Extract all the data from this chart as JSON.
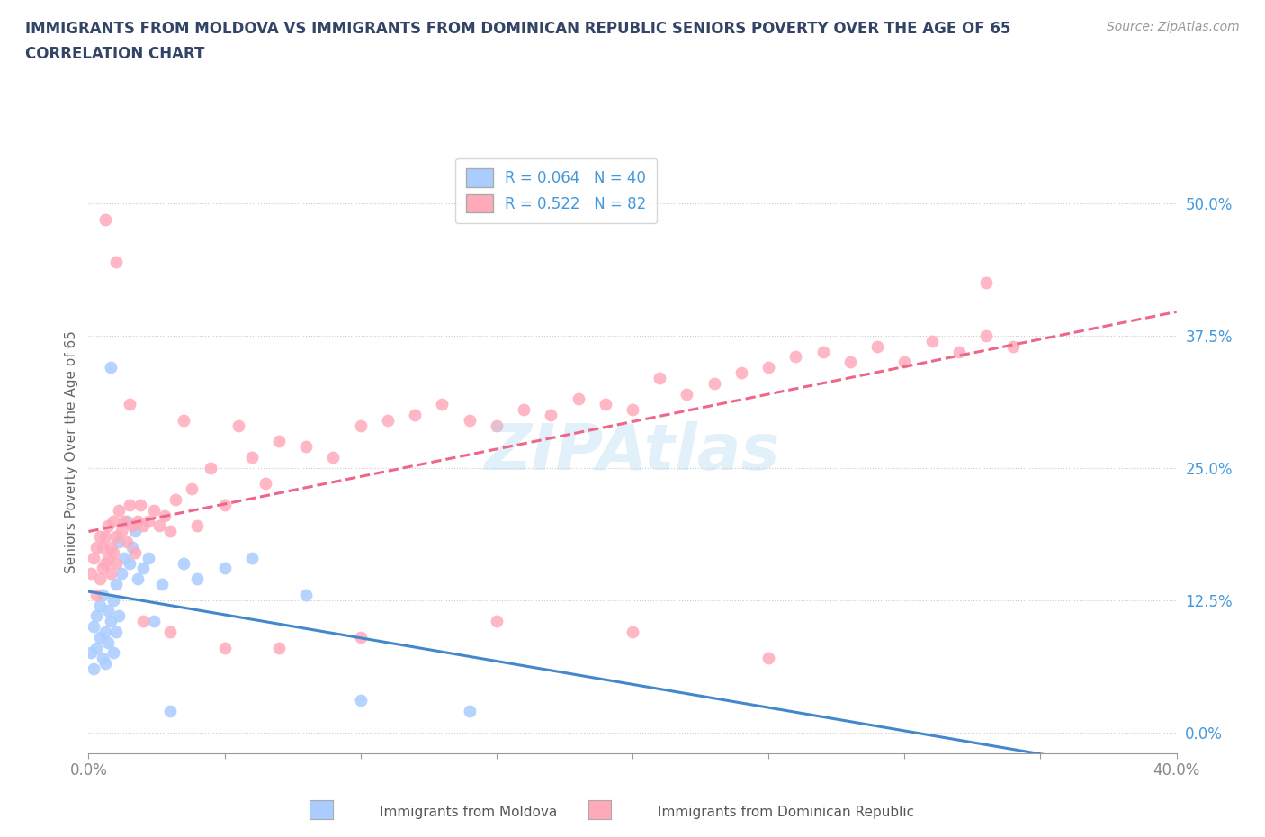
{
  "title_line1": "IMMIGRANTS FROM MOLDOVA VS IMMIGRANTS FROM DOMINICAN REPUBLIC SENIORS POVERTY OVER THE AGE OF 65",
  "title_line2": "CORRELATION CHART",
  "source": "Source: ZipAtlas.com",
  "ylabel": "Seniors Poverty Over the Age of 65",
  "xlim": [
    0.0,
    0.4
  ],
  "ylim": [
    -0.02,
    0.55
  ],
  "yticks": [
    0.0,
    0.125,
    0.25,
    0.375,
    0.5
  ],
  "ytick_labels": [
    "0.0%",
    "12.5%",
    "25.0%",
    "37.5%",
    "50.0%"
  ],
  "xticks": [
    0.0,
    0.05,
    0.1,
    0.15,
    0.2,
    0.25,
    0.3,
    0.35,
    0.4
  ],
  "xtick_labels": [
    "0.0%",
    "",
    "",
    "",
    "",
    "",
    "",
    "",
    "40.0%"
  ],
  "color_moldova": "#aaccff",
  "color_dr": "#ffaabb",
  "line_color_moldova": "#4488cc",
  "line_color_dr": "#ee6688",
  "title_color": "#334466",
  "tick_color_y": "#4499dd",
  "tick_color_x": "#888888",
  "moldova_scatter_x": [
    0.001,
    0.002,
    0.002,
    0.003,
    0.003,
    0.004,
    0.004,
    0.005,
    0.005,
    0.006,
    0.006,
    0.007,
    0.007,
    0.008,
    0.008,
    0.009,
    0.009,
    0.01,
    0.01,
    0.011,
    0.011,
    0.012,
    0.013,
    0.014,
    0.015,
    0.016,
    0.017,
    0.018,
    0.02,
    0.022,
    0.024,
    0.027,
    0.03,
    0.035,
    0.04,
    0.05,
    0.06,
    0.08,
    0.1,
    0.14
  ],
  "moldova_scatter_y": [
    0.075,
    0.06,
    0.1,
    0.08,
    0.11,
    0.09,
    0.12,
    0.07,
    0.13,
    0.065,
    0.095,
    0.115,
    0.085,
    0.345,
    0.105,
    0.075,
    0.125,
    0.095,
    0.14,
    0.11,
    0.18,
    0.15,
    0.165,
    0.2,
    0.16,
    0.175,
    0.19,
    0.145,
    0.155,
    0.165,
    0.105,
    0.14,
    0.02,
    0.16,
    0.145,
    0.155,
    0.165,
    0.13,
    0.03,
    0.02
  ],
  "dr_scatter_x": [
    0.001,
    0.002,
    0.003,
    0.003,
    0.004,
    0.004,
    0.005,
    0.005,
    0.006,
    0.006,
    0.007,
    0.007,
    0.008,
    0.008,
    0.009,
    0.009,
    0.01,
    0.01,
    0.011,
    0.012,
    0.013,
    0.014,
    0.015,
    0.016,
    0.017,
    0.018,
    0.019,
    0.02,
    0.022,
    0.024,
    0.026,
    0.028,
    0.03,
    0.032,
    0.035,
    0.038,
    0.04,
    0.045,
    0.05,
    0.055,
    0.06,
    0.065,
    0.07,
    0.08,
    0.09,
    0.1,
    0.11,
    0.12,
    0.13,
    0.14,
    0.15,
    0.16,
    0.17,
    0.18,
    0.19,
    0.2,
    0.21,
    0.22,
    0.23,
    0.24,
    0.25,
    0.26,
    0.27,
    0.28,
    0.29,
    0.3,
    0.31,
    0.32,
    0.33,
    0.34,
    0.006,
    0.01,
    0.015,
    0.02,
    0.03,
    0.05,
    0.07,
    0.1,
    0.15,
    0.2,
    0.25,
    0.33
  ],
  "dr_scatter_y": [
    0.15,
    0.165,
    0.13,
    0.175,
    0.145,
    0.185,
    0.155,
    0.175,
    0.16,
    0.185,
    0.165,
    0.195,
    0.15,
    0.175,
    0.2,
    0.17,
    0.185,
    0.16,
    0.21,
    0.19,
    0.2,
    0.18,
    0.215,
    0.195,
    0.17,
    0.2,
    0.215,
    0.195,
    0.2,
    0.21,
    0.195,
    0.205,
    0.19,
    0.22,
    0.295,
    0.23,
    0.195,
    0.25,
    0.215,
    0.29,
    0.26,
    0.235,
    0.275,
    0.27,
    0.26,
    0.29,
    0.295,
    0.3,
    0.31,
    0.295,
    0.29,
    0.305,
    0.3,
    0.315,
    0.31,
    0.305,
    0.335,
    0.32,
    0.33,
    0.34,
    0.345,
    0.355,
    0.36,
    0.35,
    0.365,
    0.35,
    0.37,
    0.36,
    0.375,
    0.365,
    0.485,
    0.445,
    0.31,
    0.105,
    0.095,
    0.08,
    0.08,
    0.09,
    0.105,
    0.095,
    0.07,
    0.425
  ]
}
